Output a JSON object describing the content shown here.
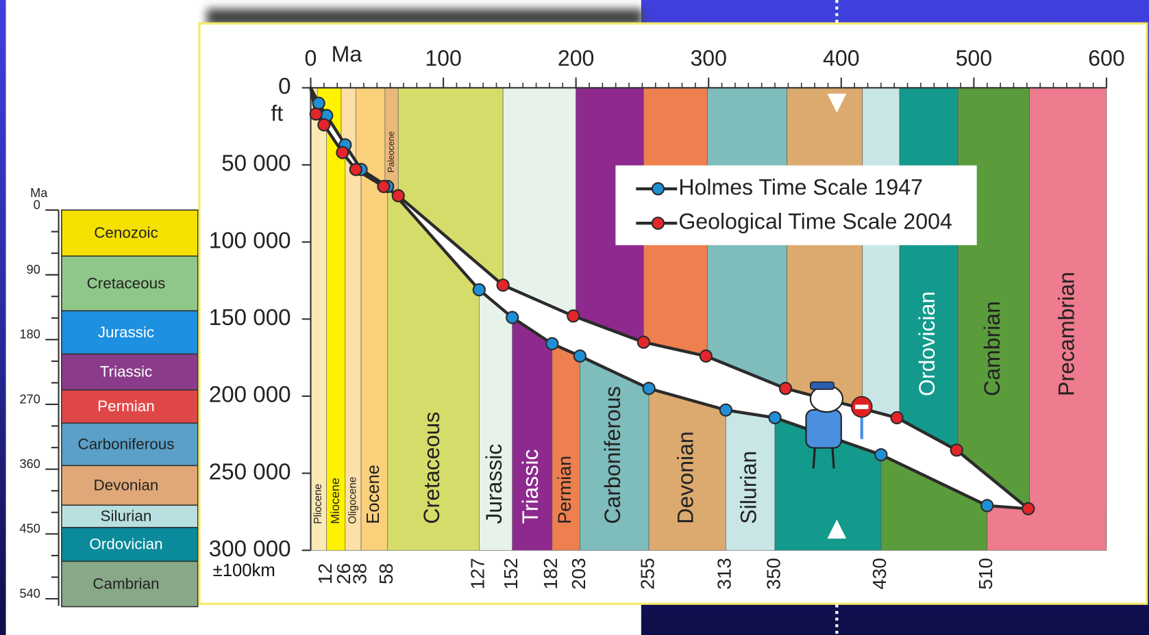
{
  "chart_data": [
    {
      "type": "line",
      "x_label": "Ma",
      "y_label": "ft",
      "annotation": "±100km",
      "xlim": [
        0,
        600
      ],
      "xticks": [
        0,
        100,
        200,
        300,
        400,
        500,
        600
      ],
      "xticks_minor": [
        10,
        20,
        30,
        40,
        50,
        60,
        70,
        80,
        90,
        110,
        120,
        130,
        140,
        150,
        160,
        170,
        180,
        190,
        210,
        220,
        230,
        240,
        250,
        260,
        270,
        280,
        290,
        310,
        320,
        330,
        340,
        350,
        360,
        370,
        380,
        390,
        410,
        420,
        430,
        440,
        450,
        460,
        470,
        480,
        490,
        510,
        520,
        530,
        540,
        550,
        560,
        570,
        580,
        590
      ],
      "ylim": [
        0,
        300000
      ],
      "yticks": [
        0,
        {
          "value": 50000,
          "label": "50 000"
        },
        {
          "value": 100000,
          "label": "100 000"
        },
        {
          "value": 150000,
          "label": "150 000"
        },
        {
          "value": 200000,
          "label": "200 000"
        },
        {
          "value": 250000,
          "label": "250 000"
        },
        {
          "value": 300000,
          "label": "300 000"
        }
      ],
      "line_color": "#2b2b2b",
      "legend": "upper right",
      "series": [
        {
          "name": "Holmes Time Scale 1947",
          "color": "#1f8fd6",
          "x": [
            0,
            6,
            12,
            26,
            38,
            58,
            127,
            152,
            182,
            203,
            255,
            313,
            350,
            430,
            510
          ],
          "values": [
            0,
            10000,
            18000,
            37000,
            53000,
            64000,
            131000,
            149000,
            166000,
            174000,
            195000,
            209000,
            214000,
            238000,
            271000
          ]
        },
        {
          "name": "Geological Time Scale 2004",
          "color": "#e3262b",
          "x": [
            0,
            4,
            10,
            24,
            34,
            55,
            66,
            145,
            198,
            251,
            298,
            358,
            442,
            487,
            541
          ],
          "values": [
            0,
            17000,
            24000,
            42000,
            53000,
            64000,
            70000,
            128000,
            148000,
            165000,
            174000,
            195000,
            214000,
            235000,
            273000
          ]
        }
      ],
      "bands_1947": {
        "edges": [
          0,
          12,
          26,
          38,
          58,
          127,
          152,
          182,
          203,
          255,
          313,
          350,
          430,
          510,
          600
        ],
        "names": [
          "Pliocene",
          "Miocene",
          "Oligocene",
          "Eocene",
          "Cretaceous",
          "Jurassic",
          "Triassic",
          "Permian",
          "Carboniferous",
          "Devonian",
          "Silurian",
          null,
          null,
          null
        ],
        "colors": [
          "#fbe9b5",
          "#fff200",
          "#fde0a8",
          "#fbd07a",
          "#d6dc6a",
          "#e6f2ea",
          "#8e2a8e",
          "#ee7f4f",
          "#7fbcbc",
          "#dcaa6e",
          "#c8e6e6",
          "#139a8c",
          "#5a9c3c",
          "#ee7b8e"
        ]
      },
      "bands_2004": {
        "edges": [
          0,
          5,
          23,
          34,
          56,
          66,
          145,
          200,
          251,
          299,
          359,
          416,
          444,
          488,
          542,
          600
        ],
        "names": [
          null,
          null,
          null,
          null,
          "Paleocene",
          null,
          null,
          null,
          null,
          null,
          null,
          null,
          "Ordovician",
          "Cambrian",
          "Precambrian"
        ],
        "colors": [
          "#fbe9b5",
          "#fff200",
          "#fde0a8",
          "#fbd07a",
          "#e9b97c",
          "#d6dc6a",
          "#e6f2ea",
          "#8e2a8e",
          "#ee7f4f",
          "#7fbcbc",
          "#dcaa6e",
          "#c8e6e6",
          "#139a8c",
          "#5a9c3c",
          "#ee7b8e"
        ]
      }
    },
    {
      "type": "column",
      "y_label": "Ma",
      "ylim": [
        0,
        550
      ],
      "yticks": [
        0,
        90,
        180,
        270,
        360,
        450,
        540
      ],
      "yticks_minor": [
        30,
        60,
        120,
        150,
        210,
        240,
        300,
        330,
        390,
        420,
        480,
        510
      ],
      "categories": [
        "Cenozoic",
        "Cretaceous",
        "Jurassic",
        "Triassic",
        "Permian",
        "Carboniferous",
        "Devonian",
        "Silurian",
        "Ordovician",
        "Cambrian"
      ],
      "values": [
        64,
        76,
        60,
        50,
        46,
        59,
        55,
        31,
        47,
        63
      ],
      "colors": [
        "#f5e100",
        "#8fc78a",
        "#1e90e0",
        "#8a3c8a",
        "#e04848",
        "#5aa0c8",
        "#e0a878",
        "#b8e0e0",
        "#0a8a9a",
        "#88a888"
      ]
    }
  ]
}
